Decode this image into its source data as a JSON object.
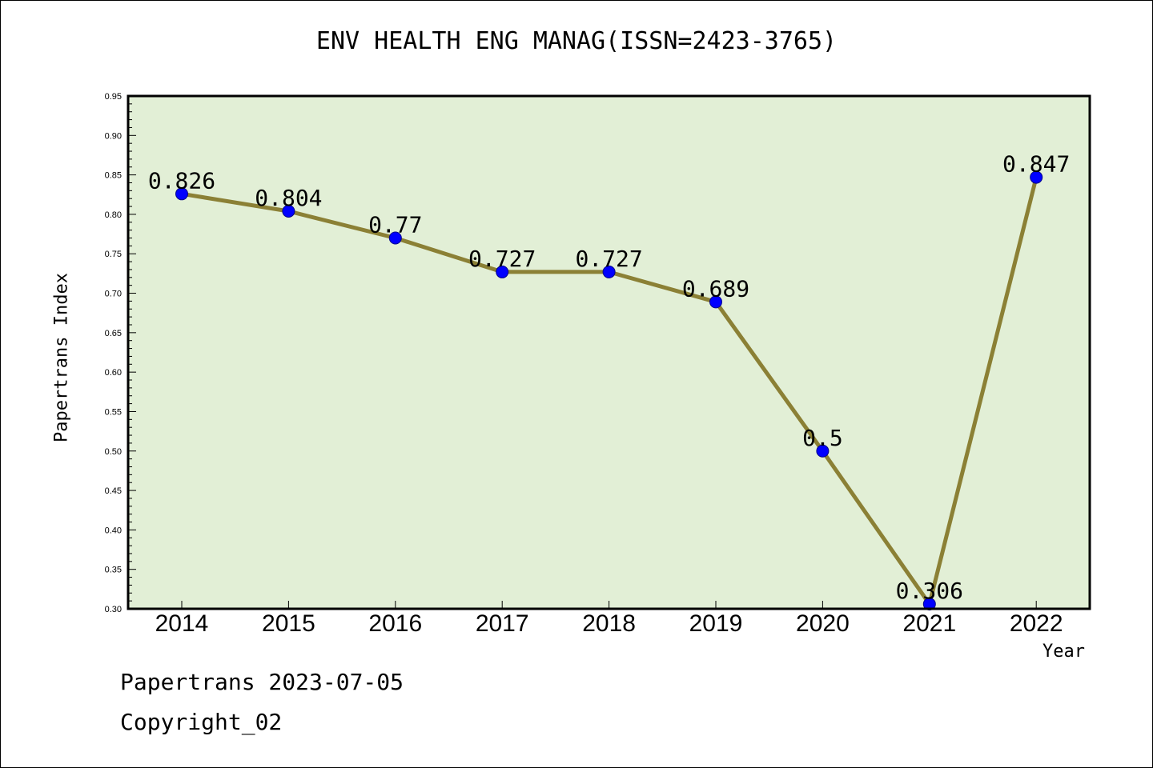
{
  "chart_data": {
    "type": "line",
    "title": "ENV HEALTH ENG MANAG(ISSN=2423-3765)",
    "xlabel": "Year",
    "ylabel": "Papertrans Index",
    "categories": [
      "2014",
      "2015",
      "2016",
      "2017",
      "2018",
      "2019",
      "2020",
      "2021",
      "2022"
    ],
    "series": [
      {
        "values": [
          0.826,
          0.804,
          0.77,
          0.727,
          0.727,
          0.689,
          0.5,
          0.306,
          0.847
        ],
        "labels": [
          "0.826",
          "0.804",
          "0.77",
          "0.727",
          "0.727",
          "0.689",
          "0.5",
          "0.306",
          "0.847"
        ]
      }
    ],
    "ylim": [
      0.3,
      0.95
    ],
    "yticks": [
      "0.30",
      "0.35",
      "0.40",
      "0.45",
      "0.50",
      "0.55",
      "0.60",
      "0.65",
      "0.70",
      "0.75",
      "0.80",
      "0.85",
      "0.90",
      "0.95"
    ],
    "grid": false,
    "legend": "none",
    "colors": {
      "plot_background": "#e2efd6",
      "line": "#8b8035",
      "marker": "#0000ff"
    }
  },
  "footer": {
    "date_text": "Papertrans 2023-07-05",
    "copyright_text": "Copyright_02"
  }
}
